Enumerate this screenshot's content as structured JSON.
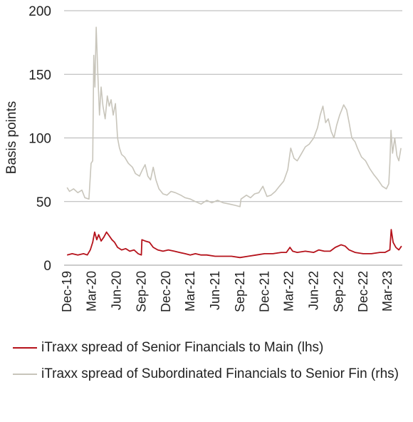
{
  "chart_data": {
    "type": "line",
    "title": "",
    "xlabel": "",
    "ylabel": "Basis points",
    "ylim": [
      0,
      200
    ],
    "yticks": [
      0,
      50,
      100,
      150,
      200
    ],
    "grid": true,
    "legend_position": "bottom",
    "x_tick_labels": [
      "Dec-19",
      "Mar-20",
      "Jun-20",
      "Sep-20",
      "Dec-20",
      "Mar-21",
      "Jun-21",
      "Sep-21",
      "Dec-21",
      "Mar-22",
      "Jun-22",
      "Sep-22",
      "Dec-22",
      "Mar-23"
    ],
    "series": [
      {
        "name": "iTraxx spread of Senior Financials to Main (lhs)",
        "color": "#b5121b",
        "points": [
          [
            "2019-12-01",
            8
          ],
          [
            "2019-12-20",
            9
          ],
          [
            "2020-01-10",
            8
          ],
          [
            "2020-01-31",
            9
          ],
          [
            "2020-02-14",
            8
          ],
          [
            "2020-02-25",
            12
          ],
          [
            "2020-03-05",
            18
          ],
          [
            "2020-03-12",
            26
          ],
          [
            "2020-03-20",
            20
          ],
          [
            "2020-03-27",
            24
          ],
          [
            "2020-04-05",
            19
          ],
          [
            "2020-04-15",
            22
          ],
          [
            "2020-04-25",
            26
          ],
          [
            "2020-05-05",
            23
          ],
          [
            "2020-05-15",
            20
          ],
          [
            "2020-05-25",
            18
          ],
          [
            "2020-06-05",
            14
          ],
          [
            "2020-06-20",
            12
          ],
          [
            "2020-07-05",
            13
          ],
          [
            "2020-07-20",
            11
          ],
          [
            "2020-08-05",
            12
          ],
          [
            "2020-08-20",
            9
          ],
          [
            "2020-09-01",
            8
          ],
          [
            "2020-09-03",
            20
          ],
          [
            "2020-09-15",
            19
          ],
          [
            "2020-10-01",
            18
          ],
          [
            "2020-10-15",
            14
          ],
          [
            "2020-11-01",
            12
          ],
          [
            "2020-11-20",
            11
          ],
          [
            "2020-12-10",
            12
          ],
          [
            "2021-01-01",
            11
          ],
          [
            "2021-01-20",
            10
          ],
          [
            "2021-02-10",
            9
          ],
          [
            "2021-03-01",
            8
          ],
          [
            "2021-03-20",
            9
          ],
          [
            "2021-04-10",
            8
          ],
          [
            "2021-05-01",
            8
          ],
          [
            "2021-06-01",
            7
          ],
          [
            "2021-07-01",
            7
          ],
          [
            "2021-08-01",
            7
          ],
          [
            "2021-09-01",
            6
          ],
          [
            "2021-10-01",
            7
          ],
          [
            "2021-11-01",
            8
          ],
          [
            "2021-12-01",
            9
          ],
          [
            "2022-01-01",
            9
          ],
          [
            "2022-02-01",
            10
          ],
          [
            "2022-02-20",
            10
          ],
          [
            "2022-03-05",
            14
          ],
          [
            "2022-03-15",
            11
          ],
          [
            "2022-04-01",
            10
          ],
          [
            "2022-05-01",
            11
          ],
          [
            "2022-06-01",
            10
          ],
          [
            "2022-06-20",
            12
          ],
          [
            "2022-07-10",
            11
          ],
          [
            "2022-08-01",
            11
          ],
          [
            "2022-08-20",
            14
          ],
          [
            "2022-09-10",
            16
          ],
          [
            "2022-09-25",
            15
          ],
          [
            "2022-10-10",
            12
          ],
          [
            "2022-11-01",
            10
          ],
          [
            "2022-12-01",
            9
          ],
          [
            "2023-01-01",
            9
          ],
          [
            "2023-02-01",
            10
          ],
          [
            "2023-02-20",
            10
          ],
          [
            "2023-03-10",
            12
          ],
          [
            "2023-03-15",
            28
          ],
          [
            "2023-03-22",
            18
          ],
          [
            "2023-04-01",
            14
          ],
          [
            "2023-04-12",
            12
          ],
          [
            "2023-04-22",
            15
          ]
        ]
      },
      {
        "name": "iTraxx spread of Subordinated Financials to Senior Fin (rhs)",
        "color": "#c8c5bb",
        "points": [
          [
            "2019-12-01",
            61
          ],
          [
            "2019-12-10",
            58
          ],
          [
            "2019-12-25",
            60
          ],
          [
            "2020-01-10",
            57
          ],
          [
            "2020-01-25",
            59
          ],
          [
            "2020-02-05",
            53
          ],
          [
            "2020-02-20",
            52
          ],
          [
            "2020-02-28",
            80
          ],
          [
            "2020-03-05",
            82
          ],
          [
            "2020-03-09",
            165
          ],
          [
            "2020-03-13",
            140
          ],
          [
            "2020-03-18",
            187
          ],
          [
            "2020-03-24",
            150
          ],
          [
            "2020-03-30",
            118
          ],
          [
            "2020-04-05",
            140
          ],
          [
            "2020-04-12",
            125
          ],
          [
            "2020-04-20",
            115
          ],
          [
            "2020-04-28",
            133
          ],
          [
            "2020-05-05",
            125
          ],
          [
            "2020-05-12",
            130
          ],
          [
            "2020-05-20",
            118
          ],
          [
            "2020-05-28",
            127
          ],
          [
            "2020-06-05",
            100
          ],
          [
            "2020-06-12",
            92
          ],
          [
            "2020-06-20",
            87
          ],
          [
            "2020-07-01",
            85
          ],
          [
            "2020-07-15",
            80
          ],
          [
            "2020-07-30",
            77
          ],
          [
            "2020-08-10",
            72
          ],
          [
            "2020-08-25",
            70
          ],
          [
            "2020-09-05",
            75
          ],
          [
            "2020-09-15",
            79
          ],
          [
            "2020-09-25",
            70
          ],
          [
            "2020-10-05",
            67
          ],
          [
            "2020-10-15",
            77
          ],
          [
            "2020-10-25",
            67
          ],
          [
            "2020-11-05",
            60
          ],
          [
            "2020-11-20",
            56
          ],
          [
            "2020-12-05",
            55
          ],
          [
            "2020-12-20",
            58
          ],
          [
            "2021-01-05",
            57
          ],
          [
            "2021-01-25",
            55
          ],
          [
            "2021-02-10",
            53
          ],
          [
            "2021-03-01",
            52
          ],
          [
            "2021-03-20",
            50
          ],
          [
            "2021-04-10",
            48
          ],
          [
            "2021-05-01",
            51
          ],
          [
            "2021-05-20",
            49
          ],
          [
            "2021-06-10",
            51
          ],
          [
            "2021-07-01",
            49
          ],
          [
            "2021-07-25",
            48
          ],
          [
            "2021-08-15",
            47
          ],
          [
            "2021-09-01",
            46
          ],
          [
            "2021-09-05",
            52
          ],
          [
            "2021-09-25",
            55
          ],
          [
            "2021-10-10",
            53
          ],
          [
            "2021-10-25",
            56
          ],
          [
            "2021-11-10",
            57
          ],
          [
            "2021-11-25",
            62
          ],
          [
            "2021-12-10",
            54
          ],
          [
            "2021-12-25",
            55
          ],
          [
            "2022-01-10",
            58
          ],
          [
            "2022-01-25",
            62
          ],
          [
            "2022-02-10",
            66
          ],
          [
            "2022-02-25",
            75
          ],
          [
            "2022-03-08",
            92
          ],
          [
            "2022-03-20",
            84
          ],
          [
            "2022-04-01",
            82
          ],
          [
            "2022-04-15",
            87
          ],
          [
            "2022-05-01",
            93
          ],
          [
            "2022-05-15",
            95
          ],
          [
            "2022-06-01",
            100
          ],
          [
            "2022-06-15",
            108
          ],
          [
            "2022-06-25",
            118
          ],
          [
            "2022-07-05",
            125
          ],
          [
            "2022-07-15",
            112
          ],
          [
            "2022-07-25",
            115
          ],
          [
            "2022-08-05",
            105
          ],
          [
            "2022-08-15",
            100
          ],
          [
            "2022-08-25",
            110
          ],
          [
            "2022-09-05",
            118
          ],
          [
            "2022-09-20",
            126
          ],
          [
            "2022-10-01",
            122
          ],
          [
            "2022-10-10",
            112
          ],
          [
            "2022-10-20",
            100
          ],
          [
            "2022-11-01",
            97
          ],
          [
            "2022-11-10",
            92
          ],
          [
            "2022-11-25",
            85
          ],
          [
            "2022-12-10",
            82
          ],
          [
            "2022-12-25",
            76
          ],
          [
            "2023-01-10",
            71
          ],
          [
            "2023-01-25",
            67
          ],
          [
            "2023-02-10",
            62
          ],
          [
            "2023-02-25",
            60
          ],
          [
            "2023-03-06",
            64
          ],
          [
            "2023-03-10",
            80
          ],
          [
            "2023-03-14",
            106
          ],
          [
            "2023-03-20",
            88
          ],
          [
            "2023-03-28",
            100
          ],
          [
            "2023-04-05",
            86
          ],
          [
            "2023-04-12",
            82
          ],
          [
            "2023-04-20",
            92
          ]
        ]
      }
    ]
  }
}
